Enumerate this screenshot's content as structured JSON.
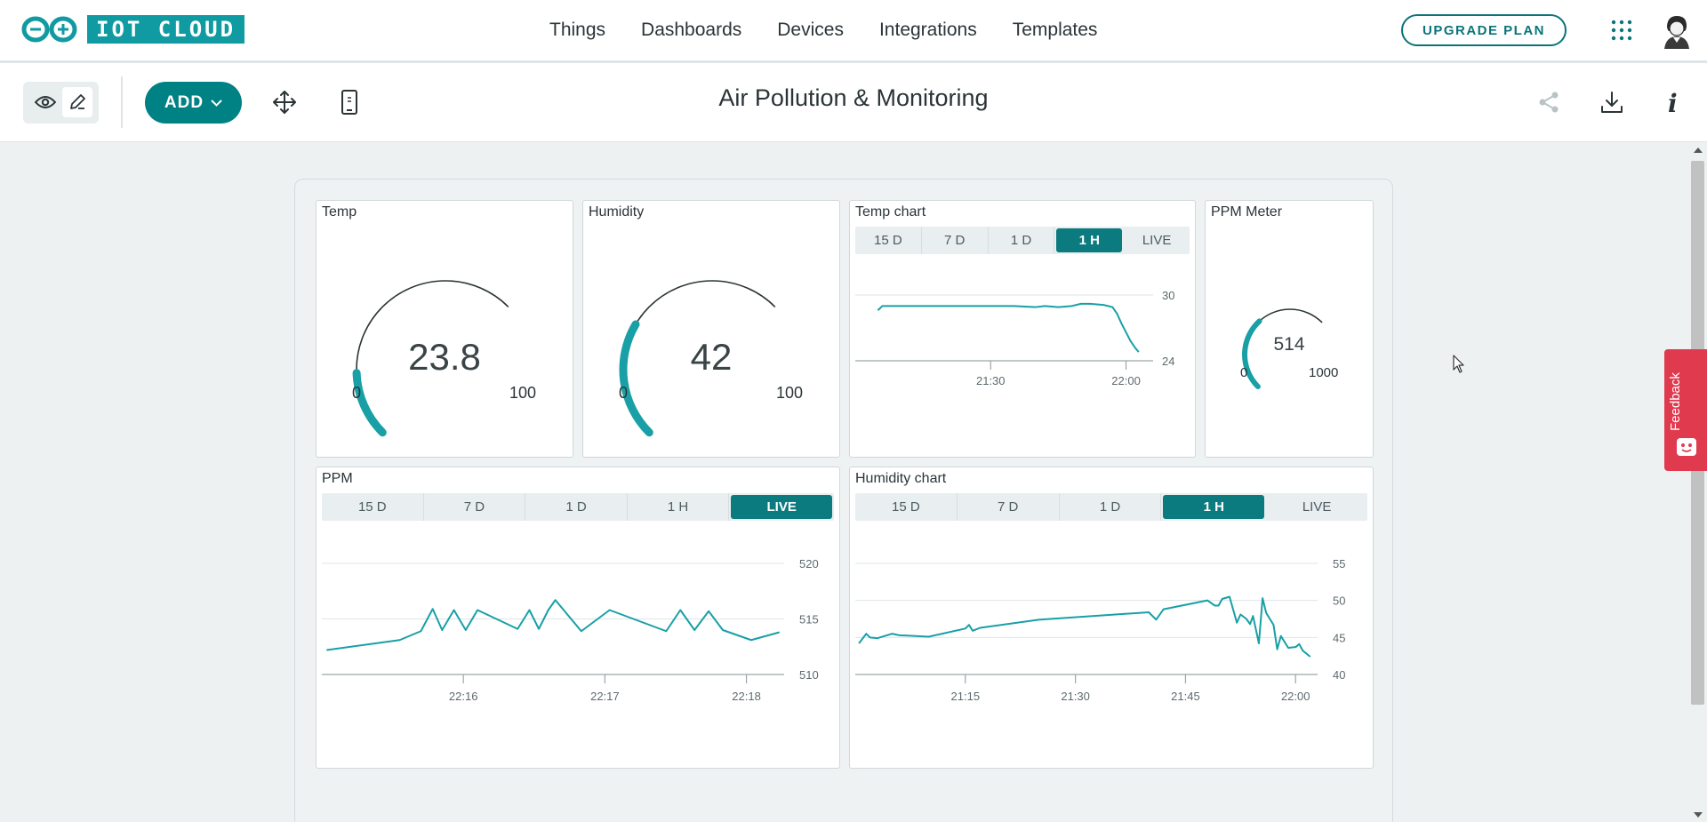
{
  "app": {
    "logo_text": "IOT CLOUD"
  },
  "nav": {
    "items": [
      "Things",
      "Dashboards",
      "Devices",
      "Integrations",
      "Templates"
    ],
    "upgrade_label": "UPGRADE PLAN"
  },
  "toolbar": {
    "add_label": "ADD",
    "dashboard_title": "Air Pollution & Monitoring"
  },
  "colors": {
    "accent": "#008184",
    "gauge": "#18a0a6",
    "feedback": "#e03a4f"
  },
  "widgets": {
    "temp": {
      "title": "Temp",
      "value": "23.8",
      "min": "0",
      "max": "100",
      "fraction": 0.238
    },
    "humidity": {
      "title": "Humidity",
      "value": "42",
      "min": "0",
      "max": "100",
      "fraction": 0.42
    },
    "ppm_meter": {
      "title": "PPM Meter",
      "value": "514",
      "min": "0",
      "max": "1000",
      "fraction": 0.514
    },
    "temp_chart": {
      "title": "Temp chart",
      "ranges": [
        "15 D",
        "7 D",
        "1 D",
        "1 H",
        "LIVE"
      ],
      "active_range": "1 H"
    },
    "ppm": {
      "title": "PPM",
      "ranges": [
        "15 D",
        "7 D",
        "1 D",
        "1 H",
        "LIVE"
      ],
      "active_range": "LIVE"
    },
    "humidity_chart": {
      "title": "Humidity chart",
      "ranges": [
        "15 D",
        "7 D",
        "1 D",
        "1 H",
        "LIVE"
      ],
      "active_range": "1 H"
    }
  },
  "feedback": {
    "label": "Feedback"
  },
  "chart_data": [
    {
      "id": "temp_chart",
      "type": "line",
      "xticks": [
        "21:30",
        "22:00"
      ],
      "xtick_minutes": [
        30,
        60
      ],
      "ylim": [
        24,
        30
      ],
      "yticks": [
        24,
        30
      ],
      "x": [
        5,
        6,
        15,
        25,
        35,
        40,
        42,
        45,
        48,
        50,
        52,
        55,
        57,
        58,
        59,
        60,
        61,
        62,
        62.8
      ],
      "series": [
        {
          "values": [
            28.6,
            29.0,
            29.0,
            29.0,
            29.0,
            28.9,
            29.0,
            28.9,
            29.0,
            29.2,
            29.2,
            29.1,
            28.9,
            28.3,
            27.4,
            26.6,
            25.8,
            25.2,
            24.8
          ]
        }
      ]
    },
    {
      "id": "ppm",
      "type": "line",
      "xticks": [
        "22:16",
        "22:17",
        "22:18"
      ],
      "xtick_seconds": [
        60,
        120,
        180
      ],
      "ylim": [
        510,
        520
      ],
      "yticks": [
        510,
        515,
        520
      ],
      "x": [
        2,
        33,
        42,
        47,
        51,
        56,
        61,
        66,
        83,
        88,
        92,
        96,
        99,
        110,
        122,
        146,
        152,
        158,
        164,
        170,
        182,
        194
      ],
      "series": [
        {
          "values": [
            512.2,
            513.1,
            513.9,
            515.9,
            514.0,
            515.8,
            514.0,
            515.8,
            514.1,
            515.8,
            514.1,
            515.8,
            516.7,
            513.9,
            515.8,
            513.9,
            515.8,
            514.0,
            515.7,
            514.0,
            513.1,
            513.8
          ]
        }
      ]
    },
    {
      "id": "humidity_chart",
      "type": "line",
      "xticks": [
        "21:15",
        "21:30",
        "21:45",
        "22:00"
      ],
      "xtick_minutes": [
        15,
        30,
        45,
        60
      ],
      "ylim": [
        40,
        55
      ],
      "yticks": [
        40,
        45,
        50,
        55
      ],
      "x": [
        0.5,
        1.5,
        2,
        3,
        5,
        6,
        10,
        15,
        15.5,
        16,
        17,
        25,
        40,
        41,
        42,
        48,
        49,
        49.5,
        50,
        51,
        52,
        52.5,
        53.3,
        53.8,
        54.2,
        55,
        55.5,
        56,
        56.5,
        57,
        57.5,
        58,
        59,
        60,
        60.5,
        61,
        62
      ],
      "series": [
        {
          "values": [
            44.2,
            45.5,
            45.0,
            44.9,
            45.5,
            45.3,
            45.1,
            46.2,
            46.7,
            45.9,
            46.3,
            47.4,
            48.4,
            47.4,
            48.8,
            50.0,
            49.3,
            49.3,
            50.2,
            50.5,
            47.0,
            48.1,
            47.5,
            46.8,
            47.9,
            44.2,
            50.3,
            48.3,
            47.5,
            46.7,
            43.4,
            45.2,
            43.6,
            43.7,
            44.1,
            43.2,
            42.4
          ]
        }
      ]
    }
  ]
}
